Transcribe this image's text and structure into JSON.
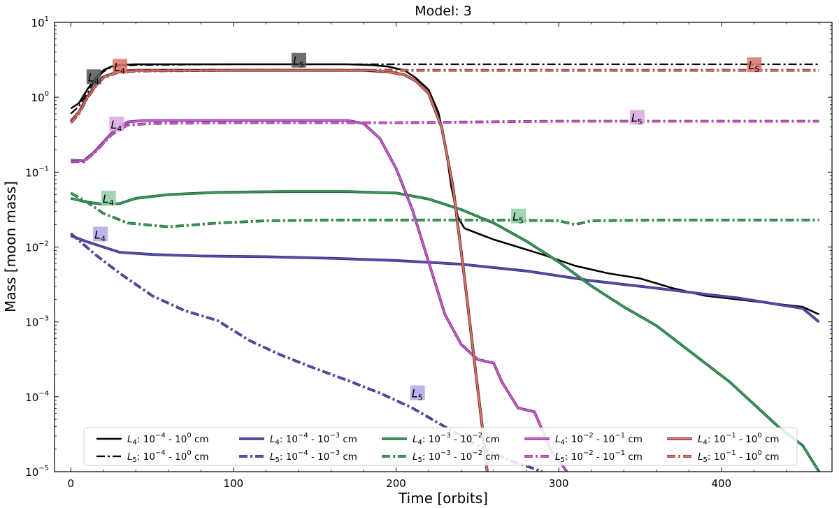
{
  "chart_data": {
    "type": "line",
    "title": "Model: 3",
    "xlabel": "Time [orbits]",
    "ylabel": "Mass [moon mass]",
    "xlim": [
      -10,
      468
    ],
    "ylim_log10": [
      -5,
      1
    ],
    "yscale": "log",
    "x_ticks": [
      0,
      100,
      200,
      300,
      400
    ],
    "x_tick_labels": [
      "0",
      "100",
      "200",
      "300",
      "400"
    ],
    "y_ticks_log10": [
      -5,
      -4,
      -3,
      -2,
      -1,
      0,
      1
    ],
    "y_tick_labels": [
      [
        "10",
        "−5"
      ],
      [
        "10",
        "−4"
      ],
      [
        "10",
        "−3"
      ],
      [
        "10",
        "−2"
      ],
      [
        "10",
        "−1"
      ],
      [
        "10",
        "0"
      ],
      [
        "10",
        "1"
      ]
    ],
    "series": [
      {
        "id": "s4_total",
        "legend": {
          "pt": "L",
          "ps": "4",
          "text": ": 10",
          "e1": "−4",
          "mid": " - 10",
          "e2": "0",
          "unit": " cm"
        },
        "color": "#000000",
        "outline": null,
        "dash": "solid",
        "width": 2.6,
        "points": [
          [
            0,
            -0.15
          ],
          [
            5,
            -0.08
          ],
          [
            10,
            0.1
          ],
          [
            15,
            0.25
          ],
          [
            20,
            0.36
          ],
          [
            25,
            0.41
          ],
          [
            30,
            0.43
          ],
          [
            40,
            0.44
          ],
          [
            100,
            0.44
          ],
          [
            170,
            0.44
          ],
          [
            185,
            0.43
          ],
          [
            195,
            0.41
          ],
          [
            205,
            0.36
          ],
          [
            212,
            0.26
          ],
          [
            220,
            0.1
          ],
          [
            226,
            -0.2
          ],
          [
            230,
            -0.6
          ],
          [
            234,
            -1.2
          ],
          [
            238,
            -1.6
          ],
          [
            242,
            -1.75
          ],
          [
            248,
            -1.8
          ],
          [
            260,
            -1.9
          ],
          [
            275,
            -2.0
          ],
          [
            290,
            -2.1
          ],
          [
            310,
            -2.25
          ],
          [
            330,
            -2.35
          ],
          [
            350,
            -2.42
          ],
          [
            370,
            -2.55
          ],
          [
            390,
            -2.65
          ],
          [
            410,
            -2.7
          ],
          [
            430,
            -2.75
          ],
          [
            450,
            -2.8
          ],
          [
            460,
            -2.9
          ]
        ]
      },
      {
        "id": "s5_total",
        "legend": {
          "pt": "L",
          "ps": "5",
          "text": ": 10",
          "e1": "−4",
          "mid": " - 10",
          "e2": "0",
          "unit": " cm"
        },
        "color": "#000000",
        "outline": null,
        "dash": "12,4,3,4",
        "width": 2.2,
        "points": [
          [
            0,
            -0.22
          ],
          [
            5,
            -0.12
          ],
          [
            10,
            0.05
          ],
          [
            15,
            0.22
          ],
          [
            20,
            0.34
          ],
          [
            25,
            0.4
          ],
          [
            30,
            0.42
          ],
          [
            40,
            0.43
          ],
          [
            100,
            0.44
          ],
          [
            200,
            0.44
          ],
          [
            300,
            0.44
          ],
          [
            400,
            0.44
          ],
          [
            460,
            0.44
          ]
        ]
      },
      {
        "id": "s4_a",
        "legend": {
          "pt": "L",
          "ps": "4",
          "text": ": 10",
          "e1": "−4",
          "mid": " - 10",
          "e2": "−3",
          "unit": " cm"
        },
        "color": "#5b4fa8",
        "outline": "#2a2a80",
        "dash": "solid",
        "width": 2.2,
        "points": [
          [
            0,
            -1.85
          ],
          [
            10,
            -1.93
          ],
          [
            20,
            -2.0
          ],
          [
            30,
            -2.07
          ],
          [
            50,
            -2.1
          ],
          [
            80,
            -2.12
          ],
          [
            120,
            -2.13
          ],
          [
            160,
            -2.15
          ],
          [
            200,
            -2.18
          ],
          [
            240,
            -2.23
          ],
          [
            280,
            -2.32
          ],
          [
            320,
            -2.45
          ],
          [
            360,
            -2.55
          ],
          [
            390,
            -2.63
          ],
          [
            410,
            -2.68
          ],
          [
            430,
            -2.75
          ],
          [
            450,
            -2.82
          ],
          [
            460,
            -3.0
          ]
        ]
      },
      {
        "id": "s5_a",
        "legend": {
          "pt": "L",
          "ps": "5",
          "text": ": 10",
          "e1": "−4",
          "mid": " - 10",
          "e2": "−3",
          "unit": " cm"
        },
        "color": "#5b4fa8",
        "outline": "#2a2a80",
        "dash": "12,4,3,4",
        "width": 2.2,
        "points": [
          [
            0,
            -1.82
          ],
          [
            15,
            -2.1
          ],
          [
            30,
            -2.35
          ],
          [
            50,
            -2.65
          ],
          [
            70,
            -2.85
          ],
          [
            90,
            -2.98
          ],
          [
            110,
            -3.25
          ],
          [
            130,
            -3.45
          ],
          [
            150,
            -3.62
          ],
          [
            170,
            -3.78
          ],
          [
            190,
            -3.95
          ],
          [
            210,
            -4.15
          ],
          [
            230,
            -4.4
          ],
          [
            250,
            -4.65
          ],
          [
            270,
            -4.85
          ],
          [
            290,
            -5.0
          ]
        ]
      },
      {
        "id": "s4_b",
        "legend": {
          "pt": "L",
          "ps": "4",
          "text": ": 10",
          "e1": "−3",
          "mid": " - 10",
          "e2": "−2",
          "unit": " cm"
        },
        "color": "#3a9a5a",
        "outline": "#1d5c33",
        "dash": "solid",
        "width": 2.2,
        "points": [
          [
            0,
            -1.35
          ],
          [
            10,
            -1.4
          ],
          [
            20,
            -1.43
          ],
          [
            30,
            -1.42
          ],
          [
            40,
            -1.35
          ],
          [
            60,
            -1.3
          ],
          [
            90,
            -1.27
          ],
          [
            130,
            -1.26
          ],
          [
            170,
            -1.26
          ],
          [
            200,
            -1.28
          ],
          [
            220,
            -1.36
          ],
          [
            240,
            -1.5
          ],
          [
            260,
            -1.68
          ],
          [
            280,
            -1.92
          ],
          [
            300,
            -2.2
          ],
          [
            320,
            -2.52
          ],
          [
            340,
            -2.8
          ],
          [
            360,
            -3.05
          ],
          [
            375,
            -3.3
          ],
          [
            390,
            -3.55
          ],
          [
            405,
            -3.8
          ],
          [
            420,
            -4.1
          ],
          [
            435,
            -4.4
          ],
          [
            450,
            -4.65
          ],
          [
            460,
            -5.0
          ]
        ]
      },
      {
        "id": "s5_b",
        "legend": {
          "pt": "L",
          "ps": "5",
          "text": ": 10",
          "e1": "−3",
          "mid": " - 10",
          "e2": "−2",
          "unit": " cm"
        },
        "color": "#3a9a5a",
        "outline": "#1d5c33",
        "dash": "12,4,3,4",
        "width": 2.2,
        "points": [
          [
            0,
            -1.28
          ],
          [
            10,
            -1.4
          ],
          [
            20,
            -1.55
          ],
          [
            35,
            -1.68
          ],
          [
            60,
            -1.73
          ],
          [
            90,
            -1.68
          ],
          [
            120,
            -1.65
          ],
          [
            160,
            -1.64
          ],
          [
            200,
            -1.64
          ],
          [
            260,
            -1.64
          ],
          [
            300,
            -1.65
          ],
          [
            310,
            -1.7
          ],
          [
            320,
            -1.65
          ],
          [
            360,
            -1.64
          ],
          [
            400,
            -1.64
          ],
          [
            460,
            -1.64
          ]
        ]
      },
      {
        "id": "s4_c",
        "legend": {
          "pt": "L",
          "ps": "4",
          "text": ": 10",
          "e1": "−2",
          "mid": " - 10",
          "e2": "−1",
          "unit": " cm"
        },
        "color": "#cc5fd0",
        "outline": "#6a2470",
        "dash": "solid",
        "width": 2.2,
        "points": [
          [
            0,
            -0.84
          ],
          [
            8,
            -0.85
          ],
          [
            15,
            -0.72
          ],
          [
            25,
            -0.48
          ],
          [
            35,
            -0.33
          ],
          [
            45,
            -0.31
          ],
          [
            100,
            -0.31
          ],
          [
            170,
            -0.31
          ],
          [
            180,
            -0.35
          ],
          [
            190,
            -0.55
          ],
          [
            200,
            -0.95
          ],
          [
            210,
            -1.5
          ],
          [
            220,
            -2.2
          ],
          [
            230,
            -2.9
          ],
          [
            240,
            -3.3
          ],
          [
            250,
            -3.5
          ],
          [
            260,
            -3.55
          ],
          [
            265,
            -3.8
          ],
          [
            275,
            -4.15
          ],
          [
            285,
            -4.2
          ],
          [
            295,
            -4.7
          ],
          [
            305,
            -5.0
          ]
        ]
      },
      {
        "id": "s5_c",
        "legend": {
          "pt": "L",
          "ps": "5",
          "text": ": 10",
          "e1": "−2",
          "mid": " - 10",
          "e2": "−1",
          "unit": " cm"
        },
        "color": "#cc5fd0",
        "outline": "#6a2470",
        "dash": "12,4,3,4",
        "width": 2.2,
        "points": [
          [
            0,
            -0.86
          ],
          [
            8,
            -0.86
          ],
          [
            15,
            -0.73
          ],
          [
            25,
            -0.5
          ],
          [
            35,
            -0.37
          ],
          [
            50,
            -0.35
          ],
          [
            100,
            -0.34
          ],
          [
            200,
            -0.34
          ],
          [
            300,
            -0.32
          ],
          [
            400,
            -0.32
          ],
          [
            460,
            -0.32
          ]
        ]
      },
      {
        "id": "s4_d",
        "legend": {
          "pt": "L",
          "ps": "4",
          "text": ": 10",
          "e1": "−1",
          "mid": " - 10",
          "e2": "0",
          "unit": " cm"
        },
        "color": "#d9756a",
        "outline": "#5a1e18",
        "dash": "solid",
        "width": 2.4,
        "points": [
          [
            0,
            -0.32
          ],
          [
            5,
            -0.2
          ],
          [
            10,
            0.0
          ],
          [
            15,
            0.15
          ],
          [
            20,
            0.27
          ],
          [
            30,
            0.35
          ],
          [
            40,
            0.36
          ],
          [
            100,
            0.36
          ],
          [
            180,
            0.36
          ],
          [
            195,
            0.34
          ],
          [
            205,
            0.3
          ],
          [
            212,
            0.22
          ],
          [
            220,
            0.05
          ],
          [
            228,
            -0.4
          ],
          [
            235,
            -1.2
          ],
          [
            242,
            -2.4
          ],
          [
            248,
            -3.5
          ],
          [
            253,
            -4.4
          ],
          [
            256,
            -5.0
          ]
        ]
      },
      {
        "id": "s5_d",
        "legend": {
          "pt": "L",
          "ps": "5",
          "text": ": 10",
          "e1": "−1",
          "mid": " - 10",
          "e2": "0",
          "unit": " cm"
        },
        "color": "#d9756a",
        "outline": "#5a1e18",
        "dash": "12,4,3,4",
        "width": 2.2,
        "points": [
          [
            0,
            -0.34
          ],
          [
            5,
            -0.22
          ],
          [
            10,
            -0.02
          ],
          [
            15,
            0.14
          ],
          [
            20,
            0.26
          ],
          [
            30,
            0.34
          ],
          [
            40,
            0.35
          ],
          [
            100,
            0.36
          ],
          [
            200,
            0.36
          ],
          [
            300,
            0.36
          ],
          [
            400,
            0.36
          ],
          [
            460,
            0.36
          ]
        ]
      }
    ],
    "point_labels": [
      {
        "text": "L",
        "sub": "4",
        "x": 14,
        "y_log10": 0.26,
        "color": "#555555"
      },
      {
        "text": "L",
        "sub": "4",
        "x": 30,
        "y_log10": 0.4,
        "color": "#d9756a"
      },
      {
        "text": "L",
        "sub": "5",
        "x": 140,
        "y_log10": 0.48,
        "color": "#555555"
      },
      {
        "text": "L",
        "sub": "5",
        "x": 420,
        "y_log10": 0.42,
        "color": "#d9756a"
      },
      {
        "text": "L",
        "sub": "4",
        "x": 28,
        "y_log10": -0.37,
        "color": "#dba8e0"
      },
      {
        "text": "L",
        "sub": "5",
        "x": 348,
        "y_log10": -0.28,
        "color": "#dba8e0"
      },
      {
        "text": "L",
        "sub": "4",
        "x": 23,
        "y_log10": -1.36,
        "color": "#8fd0a5"
      },
      {
        "text": "L",
        "sub": "5",
        "x": 275,
        "y_log10": -1.6,
        "color": "#8fd0a5"
      },
      {
        "text": "L",
        "sub": "4",
        "x": 18,
        "y_log10": -1.84,
        "color": "#b0a8e6"
      },
      {
        "text": "L",
        "sub": "5",
        "x": 213,
        "y_log10": -3.96,
        "color": "#b0a8e6"
      }
    ],
    "legend_position": "lower center",
    "legend_columns": 5,
    "ticks_direction": "in"
  }
}
